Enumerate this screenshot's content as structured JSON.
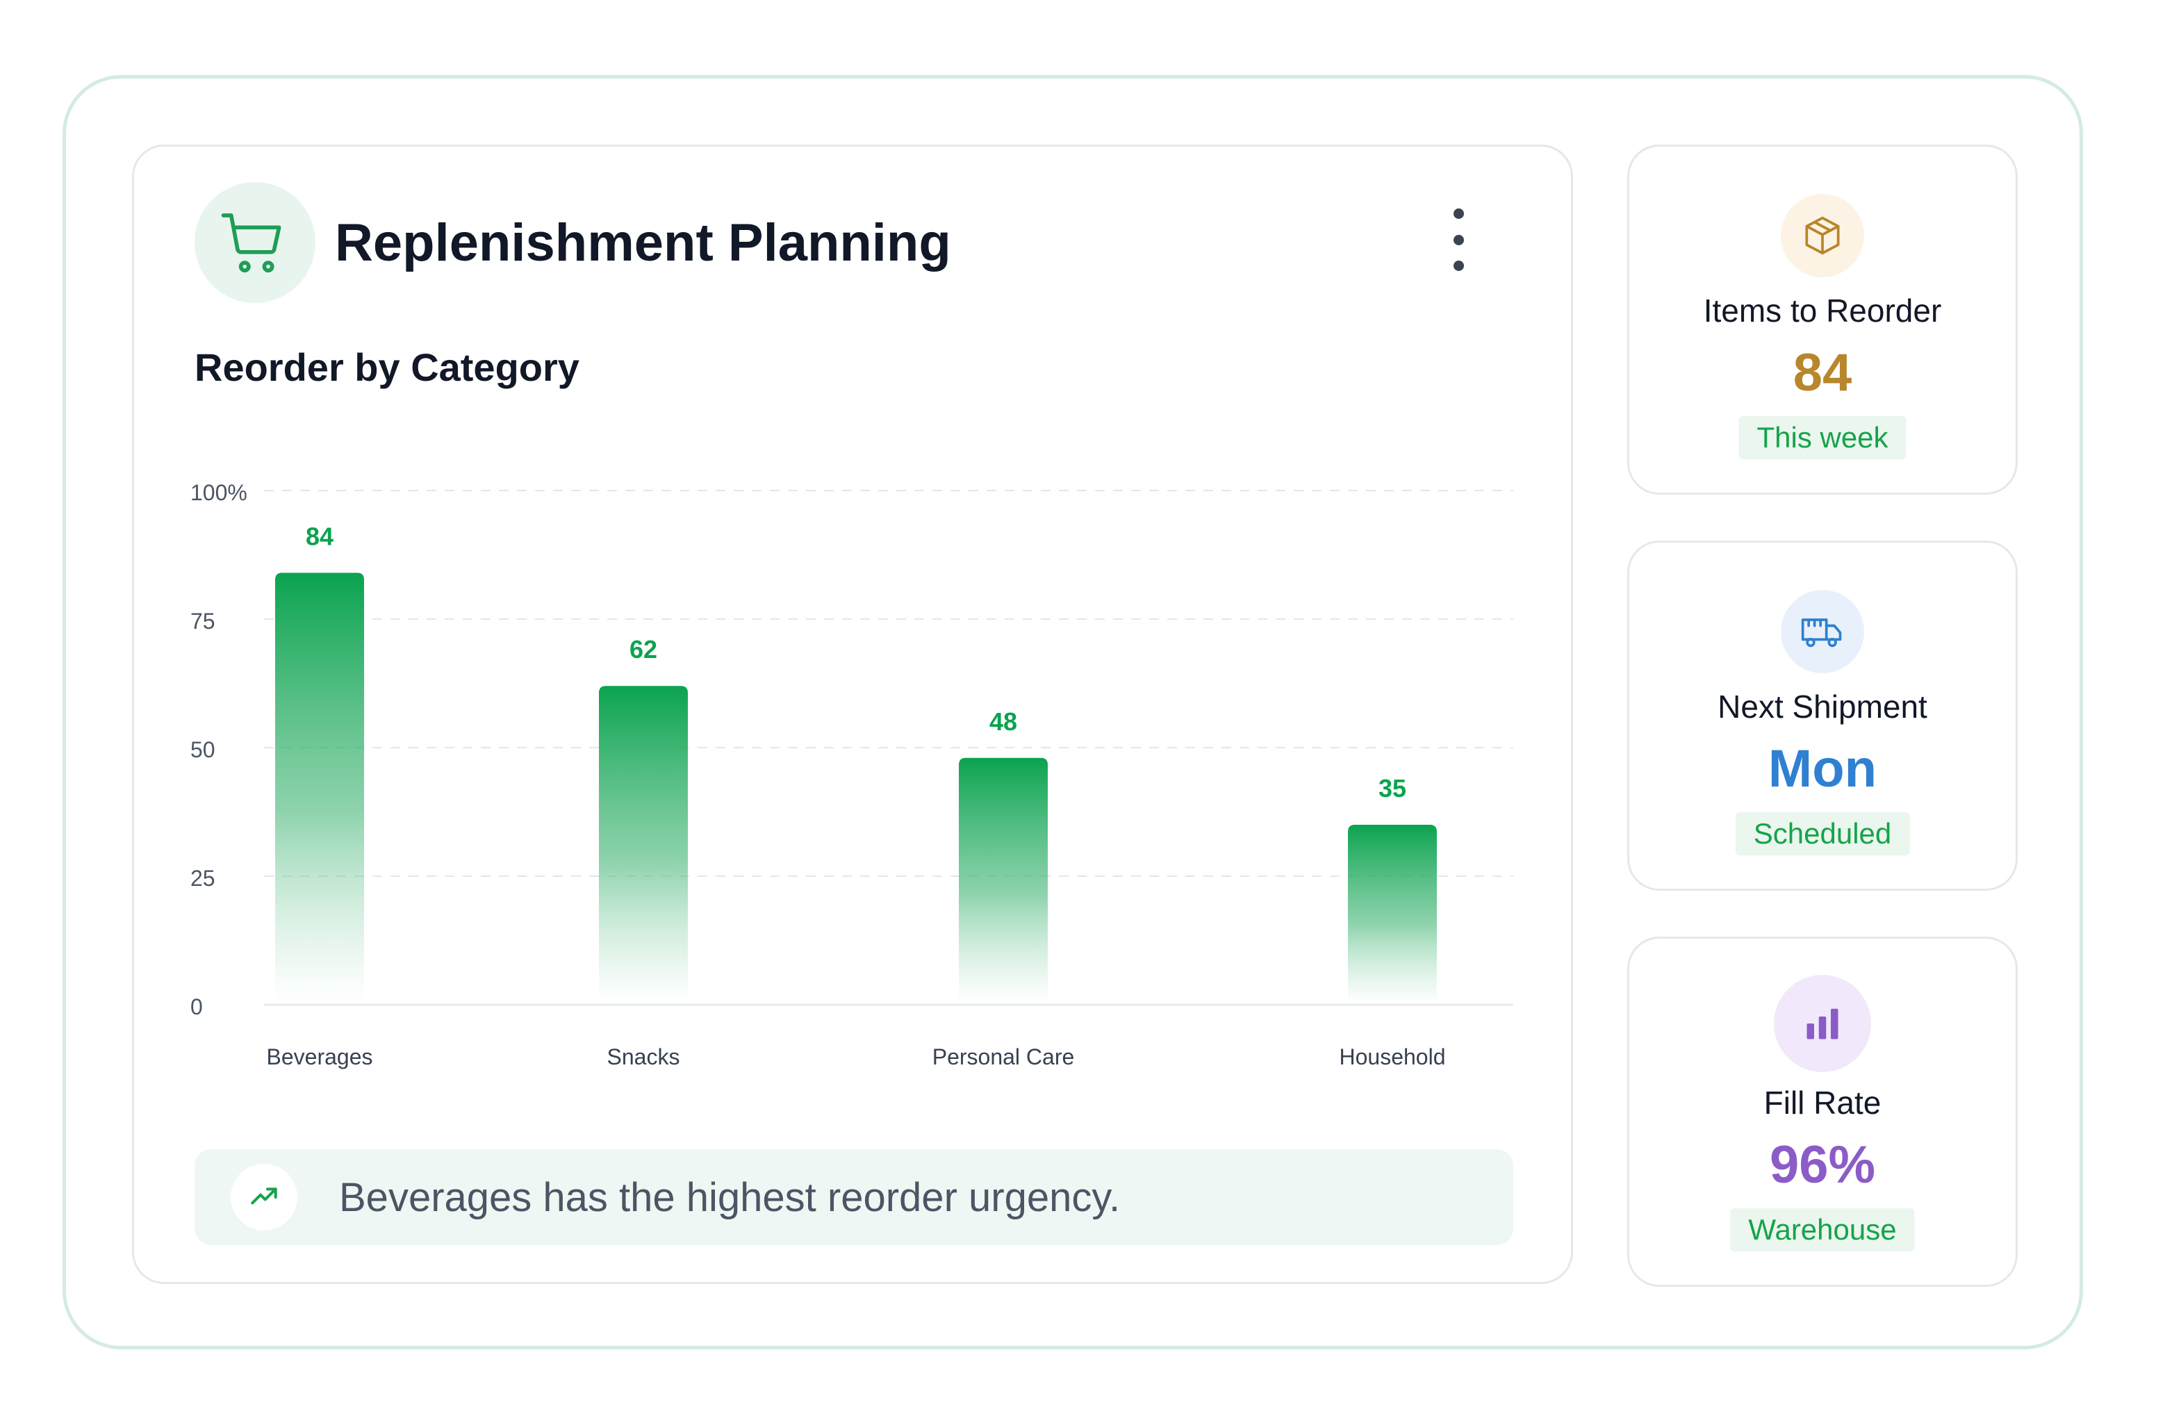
{
  "colors": {
    "accent_green": "#0aa34f",
    "bar_top": "#0aa34f",
    "orange": "#b8862b",
    "blue": "#2f80d1",
    "purple": "#8b5cc7",
    "pill_bg": "#eaf6ee",
    "pill_text": "#16a34a"
  },
  "header": {
    "icon": "shopping-cart-icon",
    "title": "Replenishment Planning",
    "menu_icon": "more-vertical-icon"
  },
  "chart_data": {
    "type": "bar",
    "title": "Reorder by Category",
    "categories": [
      "Beverages",
      "Snacks",
      "Personal Care",
      "Household"
    ],
    "values": [
      84,
      62,
      48,
      35
    ],
    "ylim": [
      0,
      100
    ],
    "yticks": [
      {
        "value": 0,
        "label": "0"
      },
      {
        "value": 25,
        "label": "25"
      },
      {
        "value": 50,
        "label": "50"
      },
      {
        "value": 75,
        "label": "75"
      },
      {
        "value": 100,
        "label": "100%"
      }
    ],
    "grid": true,
    "data_labels": true
  },
  "insight": {
    "icon": "trending-up-icon",
    "text": "Beverages has the highest reorder urgency."
  },
  "stats": [
    {
      "icon": "package-icon",
      "label": "Items to Reorder",
      "value": "84",
      "badge": "This week",
      "color": "#b8862b",
      "icon_bg": "#fdf3e4"
    },
    {
      "icon": "truck-icon",
      "label": "Next Shipment",
      "value": "Mon",
      "badge": "Scheduled",
      "color": "#2f80d1",
      "icon_bg": "#e8f1fb"
    },
    {
      "icon": "bar-chart-icon",
      "label": "Fill Rate",
      "value": "96%",
      "badge": "Warehouse",
      "color": "#8b5cc7",
      "icon_bg": "#f1e8fb"
    }
  ]
}
